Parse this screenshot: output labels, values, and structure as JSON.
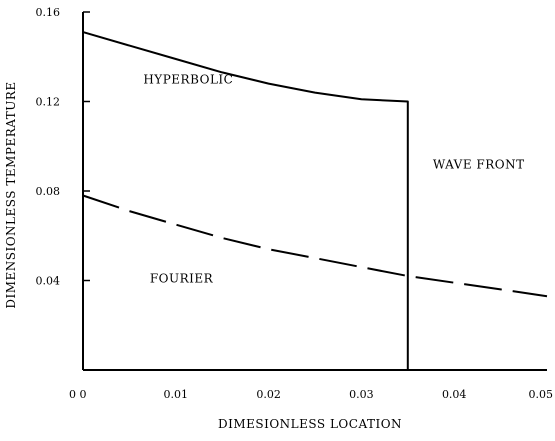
{
  "chart_data": {
    "type": "line",
    "title": "",
    "xlabel": "DIMESIONLESS LOCATION",
    "ylabel": "DIMENSIONLESS TEMPERATURE",
    "xlim": [
      0,
      0.05
    ],
    "ylim": [
      0,
      0.16
    ],
    "x_ticks": [
      {
        "value": 0.0,
        "label": "0 0"
      },
      {
        "value": 0.01,
        "label": "0.01"
      },
      {
        "value": 0.02,
        "label": "0.02"
      },
      {
        "value": 0.03,
        "label": "0.03"
      },
      {
        "value": 0.04,
        "label": "0.04"
      },
      {
        "value": 0.05,
        "label": "0.05"
      }
    ],
    "y_ticks": [
      {
        "value": 0.04,
        "label": "0.04"
      },
      {
        "value": 0.08,
        "label": "0.08"
      },
      {
        "value": 0.12,
        "label": "0.12"
      },
      {
        "value": 0.16,
        "label": "0.16"
      }
    ],
    "grid": false,
    "series": [
      {
        "line_style": "solid",
        "color": "#000000",
        "x": [
          0.0,
          0.005,
          0.01,
          0.015,
          0.02,
          0.025,
          0.03,
          0.035,
          0.035
        ],
        "y": [
          0.151,
          0.145,
          0.139,
          0.133,
          0.128,
          0.124,
          0.121,
          0.12,
          0.0
        ]
      },
      {
        "line_style": "dashed",
        "color": "#000000",
        "x": [
          0.0,
          0.005,
          0.01,
          0.015,
          0.02,
          0.025,
          0.03,
          0.035,
          0.04,
          0.045,
          0.05
        ],
        "y": [
          0.078,
          0.071,
          0.065,
          0.059,
          0.054,
          0.05,
          0.046,
          0.042,
          0.039,
          0.036,
          0.033
        ]
      }
    ],
    "annotations": [
      {
        "text": "HYPERBOLIC",
        "x": 0.0065,
        "y": 0.128
      },
      {
        "text": "WAVE FRONT",
        "x": 0.0377,
        "y": 0.09
      },
      {
        "text": "FOURIER",
        "x": 0.0072,
        "y": 0.039
      }
    ]
  }
}
